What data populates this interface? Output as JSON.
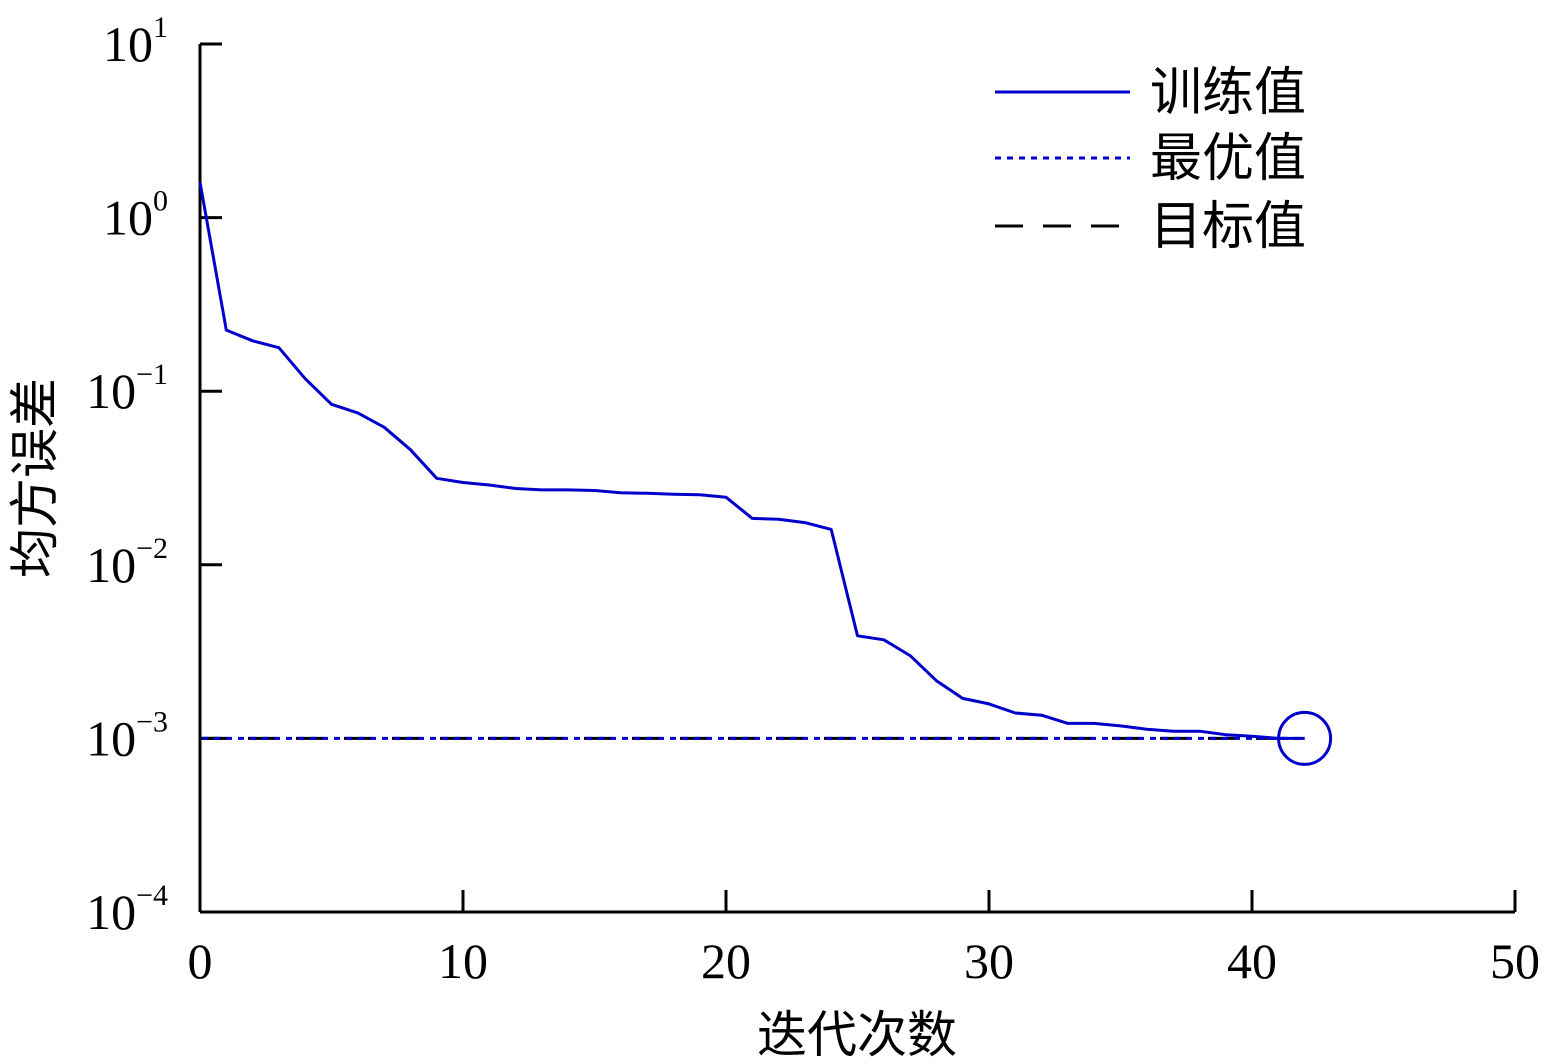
{
  "chart_data": {
    "type": "line",
    "xlabel": "迭代次数",
    "ylabel": "均方误差",
    "xlim": [
      0,
      50
    ],
    "ylim": [
      0.0001,
      10
    ],
    "yscale": "log",
    "grid": false,
    "legend_position": "top-right",
    "x_ticks": [
      {
        "value": 0,
        "label": "0"
      },
      {
        "value": 10,
        "label": "10"
      },
      {
        "value": 20,
        "label": "20"
      },
      {
        "value": 30,
        "label": "30"
      },
      {
        "value": 40,
        "label": "40"
      },
      {
        "value": 50,
        "label": "50"
      }
    ],
    "y_ticks": [
      {
        "value": 10,
        "base": "10",
        "exp": "1"
      },
      {
        "value": 1,
        "base": "10",
        "exp": "0"
      },
      {
        "value": 0.1,
        "base": "10",
        "exp": "−1"
      },
      {
        "value": 0.01,
        "base": "10",
        "exp": "−2"
      },
      {
        "value": 0.001,
        "base": "10",
        "exp": "−3"
      },
      {
        "value": 0.0001,
        "base": "10",
        "exp": "−4"
      }
    ],
    "series": [
      {
        "name": "训练值",
        "style": "solid",
        "color": "#0000cc",
        "x": [
          0,
          1,
          2,
          3,
          4,
          5,
          6,
          7,
          8,
          9,
          10,
          11,
          12,
          13,
          14,
          15,
          16,
          17,
          18,
          19,
          20,
          21,
          22,
          23,
          24,
          25,
          26,
          27,
          28,
          29,
          30,
          31,
          32,
          33,
          34,
          35,
          36,
          37,
          38,
          39,
          40,
          41,
          42
        ],
        "y": [
          1.6,
          0.225,
          0.195,
          0.178,
          0.118,
          0.084,
          0.075,
          0.062,
          0.046,
          0.0315,
          0.0298,
          0.0288,
          0.0275,
          0.027,
          0.027,
          0.0268,
          0.026,
          0.0258,
          0.0255,
          0.0253,
          0.0245,
          0.0185,
          0.0183,
          0.0175,
          0.016,
          0.0039,
          0.0037,
          0.003,
          0.00215,
          0.0017,
          0.00158,
          0.0014,
          0.00136,
          0.00122,
          0.00122,
          0.00118,
          0.00113,
          0.0011,
          0.0011,
          0.00105,
          0.00103,
          0.001,
          0.001
        ]
      },
      {
        "name": "最优值",
        "style": "dotted",
        "color": "#0000cc",
        "x": [
          0,
          42
        ],
        "y": [
          0.001,
          0.001
        ]
      },
      {
        "name": "目标值",
        "style": "dashed",
        "color": "#000000",
        "x": [
          0,
          42
        ],
        "y": [
          0.001,
          0.001
        ]
      }
    ],
    "marker": {
      "x": 42,
      "y": 0.001,
      "shape": "circle",
      "color": "#0000cc"
    }
  }
}
